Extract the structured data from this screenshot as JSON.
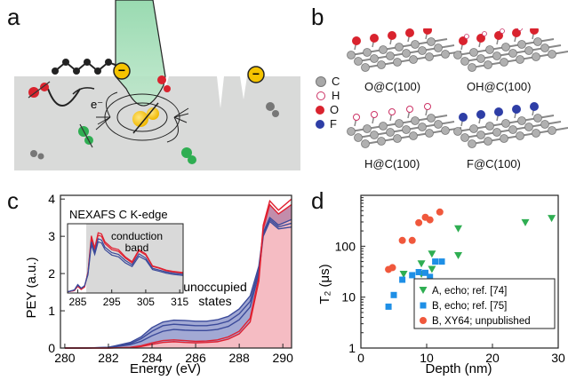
{
  "panels": {
    "a": {
      "letter": "a",
      "electron_label": "e⁻",
      "charge_symbol": "−",
      "colors": {
        "surface": "#d9dad9",
        "beam": "#8ed6a8",
        "nv_yellow": "#f5c000",
        "red_spin": "#d9232e",
        "green_spin": "#2fae52",
        "gray_spin": "#7a7a7a"
      }
    },
    "b": {
      "letter": "b",
      "legend": [
        {
          "symbol": "C",
          "color": "#a8a8a8"
        },
        {
          "symbol": "H",
          "color": "#ffffff"
        },
        {
          "symbol": "O",
          "color": "#d9232e"
        },
        {
          "symbol": "F",
          "color": "#2e3ea6"
        }
      ],
      "structures": [
        {
          "label": "O@C(100)",
          "top_color": "#d9232e"
        },
        {
          "label": "OH@C(100)",
          "top_color": "#d9232e"
        },
        {
          "label": "H@C(100)",
          "top_color": "#ffffff"
        },
        {
          "label": "F@C(100)",
          "top_color": "#2e3ea6"
        }
      ]
    },
    "c": {
      "letter": "c",
      "inset_title": "NEXAFS C K-edge",
      "inset_label_1": "conduction",
      "inset_label_2": "band",
      "annotation_1": "unoccupied",
      "annotation_2": "states",
      "chart_data": {
        "type": "line",
        "xlabel": "Energy (eV)",
        "ylabel": "PEY (a.u.)",
        "xlim": [
          279.8,
          290.4
        ],
        "ylim": [
          0,
          4.1
        ],
        "xticks": [
          280,
          282,
          284,
          286,
          288,
          290
        ],
        "yticks": [
          0,
          1,
          2,
          3,
          4
        ],
        "series": [
          {
            "color": "#3b4a9a",
            "x": [
              280,
              281,
              282,
              283,
              283.5,
              284,
              284.5,
              285,
              285.5,
              286,
              286.5,
              287,
              287.5,
              288,
              288.5,
              288.9,
              289.1,
              289.4,
              289.8,
              290.4
            ],
            "y": [
              0,
              0,
              0.02,
              0.15,
              0.3,
              0.55,
              0.7,
              0.75,
              0.74,
              0.72,
              0.72,
              0.76,
              0.85,
              1.05,
              1.4,
              2.2,
              3.1,
              3.5,
              3.3,
              3.45
            ]
          },
          {
            "color": "#3b4a9a",
            "x": [
              280,
              281,
              282,
              283,
              283.5,
              284,
              284.5,
              285,
              285.5,
              286,
              286.5,
              287,
              287.5,
              288,
              288.5,
              288.9,
              289.1,
              289.4,
              289.8,
              290.4
            ],
            "y": [
              0,
              0,
              0.02,
              0.12,
              0.25,
              0.45,
              0.6,
              0.64,
              0.62,
              0.6,
              0.6,
              0.64,
              0.72,
              0.92,
              1.25,
              2.1,
              3.05,
              3.45,
              3.25,
              3.35
            ]
          },
          {
            "color": "#3b4a9a",
            "x": [
              280,
              281,
              282,
              283,
              283.5,
              284,
              284.5,
              285,
              285.5,
              286,
              286.5,
              287,
              287.5,
              288,
              288.5,
              288.9,
              289.1,
              289.4,
              289.8,
              290.4
            ],
            "y": [
              0,
              0,
              0.01,
              0.09,
              0.18,
              0.33,
              0.45,
              0.5,
              0.48,
              0.47,
              0.47,
              0.5,
              0.58,
              0.76,
              1.1,
              2.0,
              3.0,
              3.4,
              3.2,
              3.25
            ]
          },
          {
            "color": "#e02030",
            "x": [
              280,
              281,
              282,
              283,
              283.5,
              284,
              284.5,
              285,
              285.5,
              286,
              286.5,
              287,
              287.5,
              288,
              288.5,
              288.9,
              289.1,
              289.4,
              289.8,
              290.4
            ],
            "y": [
              0,
              0,
              0,
              0.02,
              0.06,
              0.14,
              0.2,
              0.22,
              0.2,
              0.18,
              0.19,
              0.22,
              0.3,
              0.45,
              0.8,
              1.9,
              3.3,
              3.95,
              3.7,
              4.0
            ]
          },
          {
            "color": "#e02030",
            "x": [
              280,
              281,
              282,
              283,
              283.5,
              284,
              284.5,
              285,
              285.5,
              286,
              286.5,
              287,
              287.5,
              288,
              288.5,
              288.9,
              289.1,
              289.4,
              289.8,
              290.4
            ],
            "y": [
              0,
              0,
              0,
              0.01,
              0.04,
              0.1,
              0.15,
              0.17,
              0.15,
              0.14,
              0.15,
              0.17,
              0.24,
              0.38,
              0.7,
              1.8,
              3.2,
              3.85,
              3.6,
              3.85
            ]
          }
        ],
        "inset": {
          "xticks": [
            285,
            295,
            305,
            315
          ],
          "xlim": [
            282,
            316
          ],
          "ylim": [
            0,
            1.15
          ],
          "shade": [
            287.5,
            316
          ],
          "series": [
            {
              "color": "#e02030",
              "x": [
                282,
                284,
                285,
                286,
                287,
                288,
                289,
                290,
                291,
                292,
                293,
                295,
                297,
                299,
                301,
                303,
                305,
                307,
                309,
                311,
                313,
                316
              ],
              "y": [
                0.02,
                0.04,
                0.12,
                0.06,
                0.1,
                0.35,
                0.95,
                0.75,
                1.0,
                0.98,
                0.85,
                0.75,
                0.72,
                0.6,
                0.52,
                0.72,
                0.65,
                0.45,
                0.42,
                0.38,
                0.36,
                0.34
              ]
            },
            {
              "color": "#e02030",
              "x": [
                282,
                284,
                285,
                286,
                287,
                288,
                289,
                290,
                291,
                292,
                293,
                295,
                297,
                299,
                301,
                303,
                305,
                307,
                309,
                311,
                313,
                316
              ],
              "y": [
                0.02,
                0.04,
                0.11,
                0.06,
                0.1,
                0.33,
                0.9,
                0.72,
                0.96,
                0.94,
                0.82,
                0.72,
                0.69,
                0.58,
                0.5,
                0.7,
                0.63,
                0.44,
                0.41,
                0.37,
                0.35,
                0.33
              ]
            },
            {
              "color": "#3b4a9a",
              "x": [
                282,
                284,
                285,
                286,
                287,
                288,
                289,
                290,
                291,
                292,
                293,
                295,
                297,
                299,
                301,
                303,
                305,
                307,
                309,
                311,
                313,
                316
              ],
              "y": [
                0.02,
                0.05,
                0.14,
                0.08,
                0.12,
                0.32,
                0.85,
                0.68,
                0.9,
                0.88,
                0.76,
                0.67,
                0.64,
                0.54,
                0.47,
                0.65,
                0.58,
                0.41,
                0.38,
                0.35,
                0.33,
                0.31
              ]
            },
            {
              "color": "#3b4a9a",
              "x": [
                282,
                284,
                285,
                286,
                287,
                288,
                289,
                290,
                291,
                292,
                293,
                295,
                297,
                299,
                301,
                303,
                305,
                307,
                309,
                311,
                313,
                316
              ],
              "y": [
                0.02,
                0.05,
                0.13,
                0.08,
                0.12,
                0.3,
                0.8,
                0.64,
                0.85,
                0.83,
                0.72,
                0.63,
                0.6,
                0.5,
                0.44,
                0.61,
                0.55,
                0.39,
                0.36,
                0.33,
                0.31,
                0.29
              ]
            }
          ]
        }
      }
    },
    "d": {
      "letter": "d",
      "chart_data": {
        "type": "scatter",
        "xlabel": "Depth (nm)",
        "ylabel": "T₂ (μs)",
        "xlim": [
          0,
          30
        ],
        "ylim": [
          1,
          1000
        ],
        "yscale": "log",
        "xticks": [
          0,
          10,
          20,
          30
        ],
        "yticks": [
          1,
          10,
          100
        ],
        "legend_position": "lower-right",
        "series": [
          {
            "name": "A, echo; ref. [74]",
            "marker": "triangle-down",
            "color": "#2fae52",
            "x": [
              6.5,
              9.2,
              10.8,
              14.8,
              25,
              29
            ],
            "y": [
              28,
              45,
              70,
              220,
              290,
              350
            ]
          },
          {
            "name": "A, echo; ref. [74] b",
            "marker": "triangle-down",
            "color": "#2fae52",
            "x": [
              10.8,
              14.8,
              9.2
            ],
            "y": [
              35,
              65,
              28
            ]
          },
          {
            "name": "B, echo; ref. [75]",
            "marker": "square",
            "color": "#1e8fe6",
            "x": [
              4.2,
              5.0,
              6.3,
              7.8,
              8.8,
              9.8,
              10.5,
              11.3,
              12.3
            ],
            "y": [
              6.5,
              11,
              22,
              27,
              31,
              30,
              25,
              50,
              50
            ]
          },
          {
            "name": "B, XY64; unpublished",
            "marker": "circle",
            "color": "#f0583c",
            "x": [
              4.2,
              4.8,
              6.3,
              7.8,
              8.8,
              9.8,
              10.5,
              12.0
            ],
            "y": [
              35,
              38,
              130,
              130,
              290,
              370,
              330,
              470
            ]
          }
        ]
      }
    }
  }
}
